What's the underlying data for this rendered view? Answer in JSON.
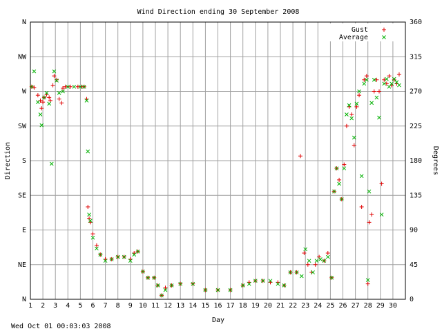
{
  "chart_data": {
    "type": "scatter",
    "title": "Wind Direction ending 30 September 2008",
    "xlabel": "Day",
    "ylabel_left": "Direction",
    "ylabel_right": "Degrees",
    "footer": "Wed Oct 01 00:03:03 2008",
    "xlim": [
      1,
      31
    ],
    "ylim": [
      0,
      360
    ],
    "x_ticks": [
      "1",
      "2",
      "3",
      "4",
      "5",
      "6",
      "7",
      "8",
      "9",
      "10",
      "11",
      "12",
      "13",
      "14",
      "15",
      "16",
      "17",
      "18",
      "19",
      "20",
      "21",
      "22",
      "23",
      "24",
      "25",
      "26",
      "27",
      "28",
      "29",
      "30"
    ],
    "y_left_ticks": [
      "N",
      "NE",
      "E",
      "SE",
      "S",
      "SW",
      "W",
      "NW",
      "N"
    ],
    "y_right_ticks": [
      "0",
      "45",
      "90",
      "135",
      "180",
      "225",
      "270",
      "315",
      "360"
    ],
    "grid": true,
    "legend_position": "top-right",
    "colors": {
      "gust": "#e00000",
      "average": "#00b000"
    },
    "series": [
      {
        "name": "Gust",
        "marker": "+",
        "points": [
          [
            1.1,
            276
          ],
          [
            1.3,
            275
          ],
          [
            1.6,
            265
          ],
          [
            1.8,
            258
          ],
          [
            1.9,
            248
          ],
          [
            2.0,
            256
          ],
          [
            2.1,
            262
          ],
          [
            2.3,
            266
          ],
          [
            2.5,
            262
          ],
          [
            2.6,
            258
          ],
          [
            2.8,
            278
          ],
          [
            2.9,
            290
          ],
          [
            3.1,
            285
          ],
          [
            3.3,
            260
          ],
          [
            3.5,
            255
          ],
          [
            3.6,
            274
          ],
          [
            3.8,
            276
          ],
          [
            4.2,
            276
          ],
          [
            4.8,
            276
          ],
          [
            5.1,
            276
          ],
          [
            5.3,
            276
          ],
          [
            5.5,
            260
          ],
          [
            5.6,
            120
          ],
          [
            5.7,
            105
          ],
          [
            5.8,
            100
          ],
          [
            6.0,
            85
          ],
          [
            6.3,
            70
          ],
          [
            6.6,
            58
          ],
          [
            7.0,
            52
          ],
          [
            7.5,
            52
          ],
          [
            8.0,
            55
          ],
          [
            8.5,
            55
          ],
          [
            9.0,
            52
          ],
          [
            9.3,
            60
          ],
          [
            9.6,
            62
          ],
          [
            10.0,
            36
          ],
          [
            10.4,
            28
          ],
          [
            10.9,
            28
          ],
          [
            11.2,
            18
          ],
          [
            11.5,
            5
          ],
          [
            11.8,
            15
          ],
          [
            12.3,
            18
          ],
          [
            13.0,
            20
          ],
          [
            14.0,
            20
          ],
          [
            15.0,
            12
          ],
          [
            16.0,
            12
          ],
          [
            17.0,
            12
          ],
          [
            18.0,
            18
          ],
          [
            18.5,
            22
          ],
          [
            19.0,
            24
          ],
          [
            19.6,
            24
          ],
          [
            20.2,
            22
          ],
          [
            20.8,
            22
          ],
          [
            21.3,
            18
          ],
          [
            21.8,
            35
          ],
          [
            22.3,
            35
          ],
          [
            22.6,
            186
          ],
          [
            22.9,
            60
          ],
          [
            23.2,
            45
          ],
          [
            23.5,
            35
          ],
          [
            23.8,
            45
          ],
          [
            24.1,
            55
          ],
          [
            24.5,
            50
          ],
          [
            24.8,
            60
          ],
          [
            25.1,
            28
          ],
          [
            25.3,
            140
          ],
          [
            25.5,
            170
          ],
          [
            25.7,
            155
          ],
          [
            25.9,
            130
          ],
          [
            26.1,
            175
          ],
          [
            26.3,
            225
          ],
          [
            26.5,
            250
          ],
          [
            26.7,
            240
          ],
          [
            26.9,
            200
          ],
          [
            27.1,
            250
          ],
          [
            27.3,
            265
          ],
          [
            27.5,
            120
          ],
          [
            27.7,
            285
          ],
          [
            27.9,
            290
          ],
          [
            28.0,
            20
          ],
          [
            28.1,
            100
          ],
          [
            28.3,
            110
          ],
          [
            28.5,
            270
          ],
          [
            28.7,
            285
          ],
          [
            28.9,
            270
          ],
          [
            29.1,
            150
          ],
          [
            29.3,
            285
          ],
          [
            29.5,
            280
          ],
          [
            29.7,
            290
          ],
          [
            29.9,
            278
          ],
          [
            30.1,
            285
          ],
          [
            30.3,
            280
          ],
          [
            30.5,
            292
          ]
        ]
      },
      {
        "name": "Average",
        "marker": "x",
        "points": [
          [
            1.1,
            276
          ],
          [
            1.3,
            296
          ],
          [
            1.6,
            256
          ],
          [
            1.8,
            240
          ],
          [
            1.9,
            226
          ],
          [
            2.1,
            262
          ],
          [
            2.3,
            268
          ],
          [
            2.5,
            254
          ],
          [
            2.7,
            176
          ],
          [
            2.9,
            296
          ],
          [
            3.1,
            284
          ],
          [
            3.3,
            268
          ],
          [
            3.6,
            270
          ],
          [
            4.0,
            276
          ],
          [
            4.5,
            276
          ],
          [
            5.0,
            276
          ],
          [
            5.3,
            276
          ],
          [
            5.5,
            258
          ],
          [
            5.6,
            192
          ],
          [
            5.7,
            110
          ],
          [
            5.8,
            102
          ],
          [
            6.0,
            80
          ],
          [
            6.3,
            66
          ],
          [
            6.6,
            58
          ],
          [
            7.0,
            50
          ],
          [
            7.5,
            52
          ],
          [
            8.0,
            55
          ],
          [
            8.5,
            55
          ],
          [
            9.0,
            50
          ],
          [
            9.3,
            58
          ],
          [
            9.6,
            62
          ],
          [
            10.0,
            36
          ],
          [
            10.4,
            28
          ],
          [
            10.9,
            28
          ],
          [
            11.2,
            18
          ],
          [
            11.5,
            5
          ],
          [
            11.8,
            12
          ],
          [
            12.3,
            18
          ],
          [
            13.0,
            20
          ],
          [
            14.0,
            20
          ],
          [
            15.0,
            12
          ],
          [
            16.0,
            12
          ],
          [
            17.0,
            12
          ],
          [
            18.0,
            18
          ],
          [
            18.5,
            20
          ],
          [
            19.0,
            24
          ],
          [
            19.6,
            24
          ],
          [
            20.2,
            24
          ],
          [
            20.8,
            20
          ],
          [
            21.3,
            18
          ],
          [
            21.8,
            35
          ],
          [
            22.3,
            35
          ],
          [
            22.7,
            30
          ],
          [
            23.0,
            65
          ],
          [
            23.3,
            50
          ],
          [
            23.6,
            35
          ],
          [
            23.9,
            50
          ],
          [
            24.2,
            52
          ],
          [
            24.5,
            50
          ],
          [
            24.8,
            55
          ],
          [
            25.1,
            28
          ],
          [
            25.3,
            140
          ],
          [
            25.5,
            170
          ],
          [
            25.7,
            150
          ],
          [
            25.9,
            130
          ],
          [
            26.1,
            170
          ],
          [
            26.3,
            240
          ],
          [
            26.5,
            252
          ],
          [
            26.7,
            235
          ],
          [
            26.9,
            210
          ],
          [
            27.1,
            254
          ],
          [
            27.3,
            270
          ],
          [
            27.5,
            160
          ],
          [
            27.7,
            280
          ],
          [
            27.9,
            285
          ],
          [
            28.0,
            25
          ],
          [
            28.1,
            140
          ],
          [
            28.3,
            255
          ],
          [
            28.5,
            285
          ],
          [
            28.7,
            262
          ],
          [
            28.9,
            236
          ],
          [
            29.1,
            110
          ],
          [
            29.3,
            280
          ],
          [
            29.5,
            286
          ],
          [
            29.7,
            276
          ],
          [
            29.9,
            280
          ],
          [
            30.1,
            286
          ],
          [
            30.3,
            282
          ],
          [
            30.5,
            278
          ]
        ]
      }
    ]
  }
}
